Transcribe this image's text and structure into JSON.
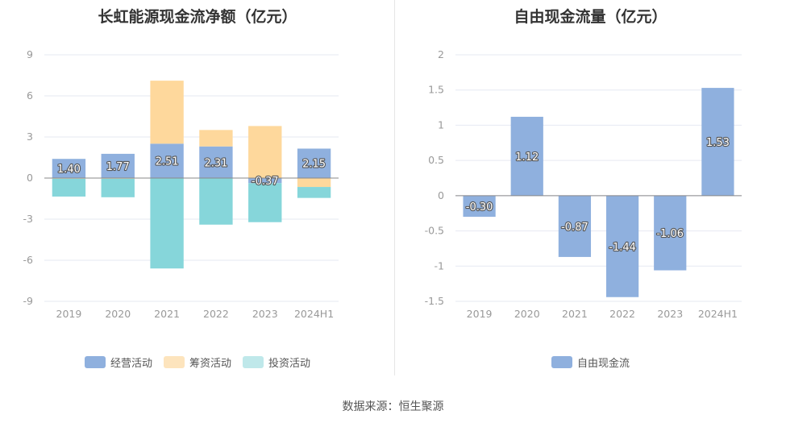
{
  "source": "数据来源：恒生聚源",
  "chart_data": [
    {
      "type": "bar",
      "stacked": true,
      "title": "长虹能源现金流净额（亿元）",
      "categories": [
        "2019",
        "2020",
        "2021",
        "2022",
        "2023",
        "2024H1"
      ],
      "ylim": [
        -9,
        9
      ],
      "yticks": [
        9,
        6,
        3,
        0,
        -3,
        -6,
        -9
      ],
      "grid": true,
      "legend_position": "bottom",
      "series": [
        {
          "name": "经营活动",
          "color": "#8fb0de",
          "values": [
            1.4,
            1.77,
            2.51,
            2.31,
            -0.37,
            2.15
          ],
          "labels": [
            "1.40",
            "1.77",
            "2.51",
            "2.31",
            "-0.37",
            "2.15"
          ]
        },
        {
          "name": "筹资活动",
          "color": "#fed89c",
          "values": [
            -0.05,
            -0.05,
            4.6,
            1.2,
            3.8,
            -0.65
          ]
        },
        {
          "name": "投资活动",
          "color": "#86d6da",
          "values": [
            -1.3,
            -1.35,
            -6.6,
            -3.4,
            -2.85,
            -0.8
          ]
        }
      ]
    },
    {
      "type": "bar",
      "title": "自由现金流量（亿元）",
      "categories": [
        "2019",
        "2020",
        "2021",
        "2022",
        "2023",
        "2024H1"
      ],
      "ylim": [
        -1.5,
        2
      ],
      "yticks": [
        2,
        1.5,
        1,
        0.5,
        0,
        -0.5,
        -1,
        -1.5
      ],
      "grid": true,
      "legend_position": "bottom",
      "series": [
        {
          "name": "自由现金流",
          "color": "#8fb0de",
          "values": [
            -0.3,
            1.12,
            -0.87,
            -1.44,
            -1.06,
            1.53
          ],
          "labels": [
            "-0.30",
            "1.12",
            "-0.87",
            "-1.44",
            "-1.06",
            "1.53"
          ]
        }
      ]
    }
  ]
}
